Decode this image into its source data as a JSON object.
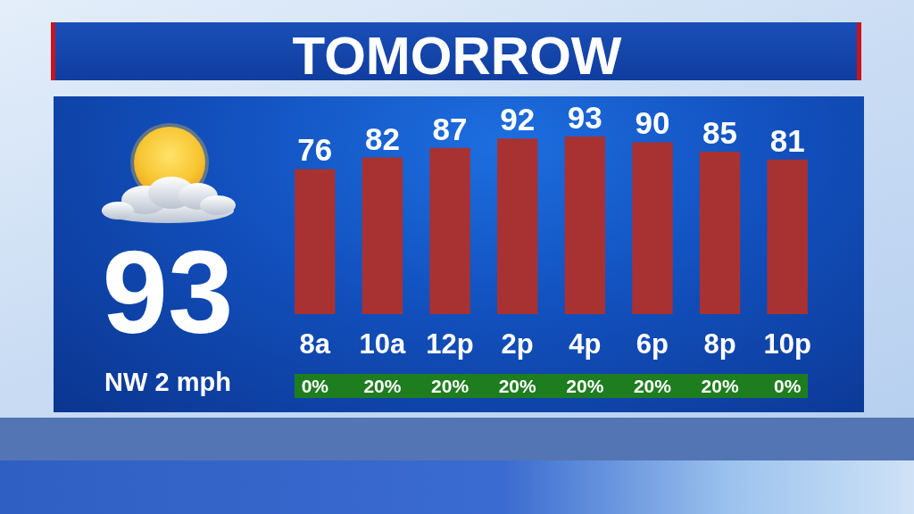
{
  "chart_data": {
    "type": "bar",
    "title": "TOMORROW",
    "categories": [
      "8a",
      "10a",
      "12p",
      "2p",
      "4p",
      "6p",
      "8p",
      "10p"
    ],
    "values": [
      76,
      82,
      87,
      92,
      93,
      90,
      85,
      81
    ],
    "color": "#a83232",
    "tick_labels": "x",
    "data_labels": true,
    "annotations": [
      "93",
      "NW 2 mph",
      "0%",
      "20%",
      "20%",
      "20%",
      "20%",
      "20%",
      "20%",
      "0%"
    ]
  }
}
